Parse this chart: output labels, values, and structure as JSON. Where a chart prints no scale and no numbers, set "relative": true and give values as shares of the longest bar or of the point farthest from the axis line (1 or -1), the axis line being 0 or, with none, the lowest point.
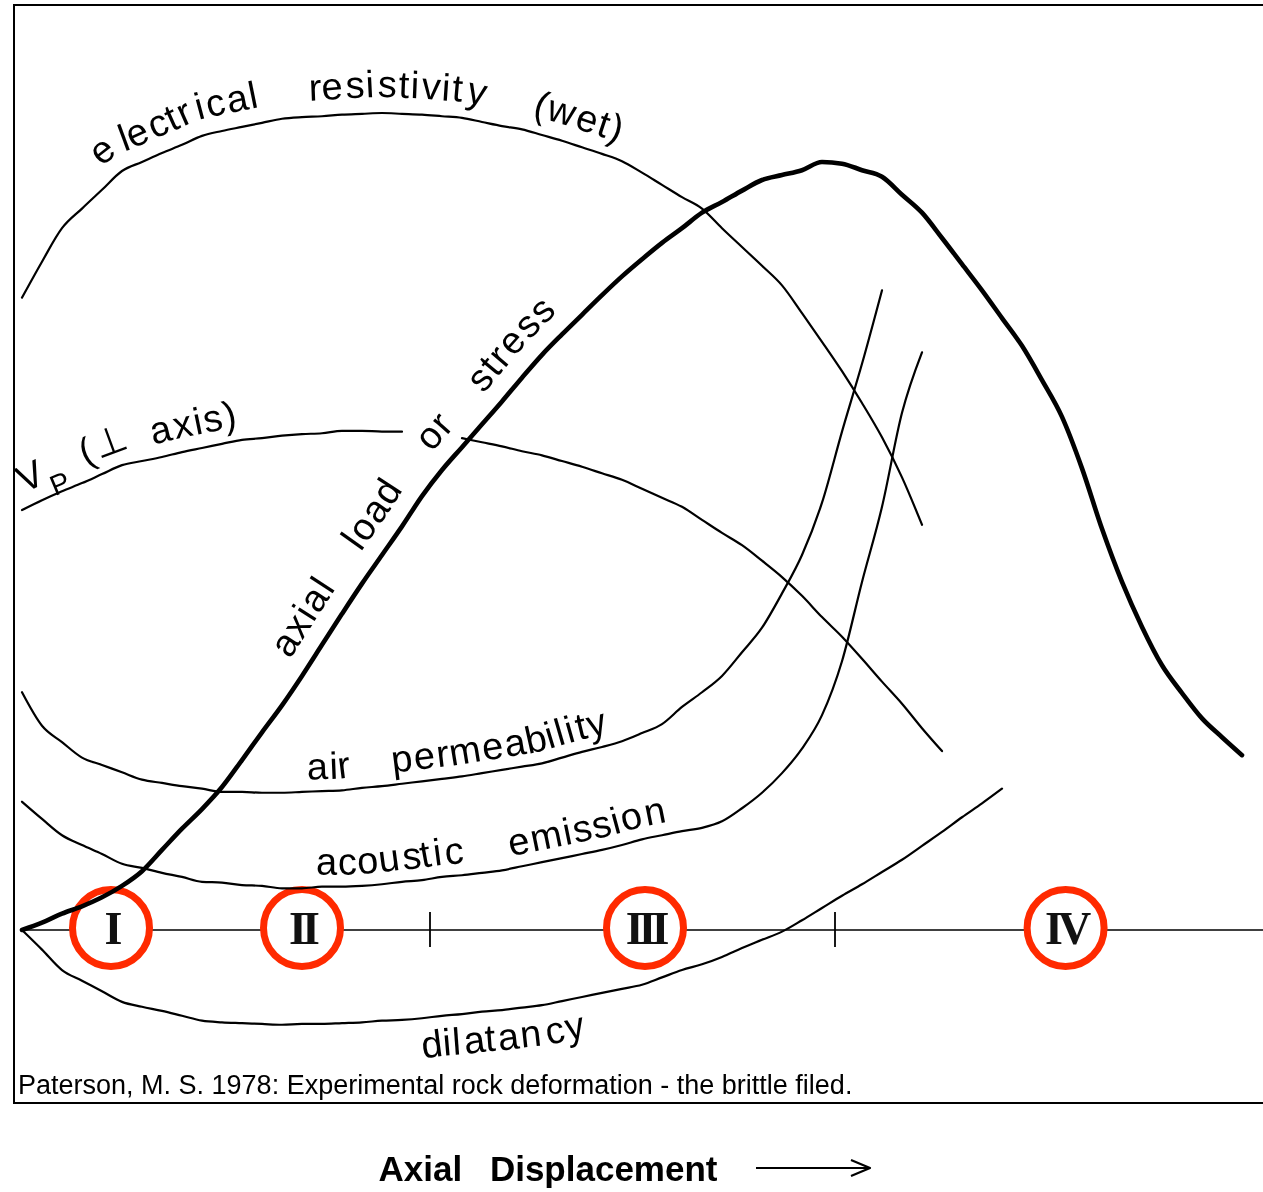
{
  "chart_data": {
    "type": "line",
    "relative": true,
    "xlabel": "Axial Displacement",
    "annotations": [
      "I",
      "II",
      "III",
      "IV",
      "Paterson, M. S. 1978: Experimental rock deformation - the brittle filed."
    ],
    "categories": [
      null,
      null,
      null,
      null,
      null,
      null,
      null,
      null,
      null,
      null,
      null,
      null,
      null,
      null,
      null,
      null,
      null,
      null,
      null,
      null,
      null,
      null,
      null,
      null,
      null,
      null,
      null,
      null,
      null,
      null,
      null,
      null,
      null,
      null,
      null,
      null,
      null,
      null,
      null,
      null,
      null,
      null,
      null,
      null,
      null,
      null,
      null,
      null,
      null,
      null,
      null,
      null,
      null,
      null,
      null,
      null,
      null,
      null,
      null,
      null,
      null,
      null
    ],
    "series": [
      {
        "name": "electrical resistivity (wet)",
        "color": "#000000",
        "values": [
          0.774,
          0.818,
          0.859,
          0.883,
          0.906,
          0.929,
          0.94,
          0.951,
          0.961,
          0.972,
          0.978,
          0.983,
          0.988,
          0.993,
          0.995,
          0.996,
          0.998,
          0.999,
          1,
          0.999,
          0.998,
          0.996,
          0.994,
          0.989,
          0.984,
          0.98,
          0.973,
          0.966,
          0.958,
          0.95,
          0.941,
          0.927,
          0.912,
          0.897,
          0.883,
          0.859,
          0.836,
          0.813,
          0.789,
          0.755,
          0.72,
          0.684,
          0.645,
          0.603,
          0.554,
          0.496,
          null,
          null,
          null,
          null,
          null,
          null,
          null,
          null,
          null,
          null,
          null,
          null,
          null,
          null,
          null,
          null
        ]
      },
      {
        "name": "V$_{P}$ (⊥ axis)",
        "color": "#000000",
        "values": [
          0.514,
          0.526,
          0.537,
          0.547,
          0.558,
          0.569,
          0.574,
          0.579,
          0.585,
          0.59,
          0.595,
          0.6,
          0.602,
          0.605,
          0.607,
          0.608,
          0.611,
          0.611,
          0.61,
          0.61,
          null,
          null,
          0.602,
          0.597,
          0.592,
          0.586,
          0.581,
          0.574,
          0.567,
          0.559,
          0.551,
          0.54,
          0.529,
          0.518,
          0.502,
          0.486,
          0.471,
          0.452,
          0.432,
          0.409,
          0.383,
          0.359,
          0.332,
          0.304,
          0.277,
          0.247,
          0.219,
          null,
          null,
          null,
          null,
          null,
          null,
          null,
          null,
          null,
          null,
          null,
          null,
          null,
          null,
          null
        ]
      },
      {
        "name": "axial load or stress",
        "color": "#000000",
        "values": [
          0,
          0.009,
          0.02,
          0.029,
          0.04,
          0.054,
          0.072,
          0.098,
          0.124,
          0.148,
          0.175,
          0.208,
          0.242,
          0.275,
          0.311,
          0.349,
          0.387,
          0.424,
          0.459,
          0.494,
          0.531,
          0.563,
          0.591,
          0.619,
          0.647,
          0.676,
          0.704,
          0.729,
          0.753,
          0.777,
          0.8,
          0.821,
          0.841,
          0.859,
          0.878,
          0.891,
          0.905,
          0.918,
          0.924,
          0.93,
          0.94,
          0.938,
          0.93,
          0.922,
          0.9,
          0.878,
          0.847,
          0.815,
          0.783,
          0.749,
          0.715,
          0.673,
          0.628,
          0.565,
          0.491,
          0.426,
          0.371,
          0.324,
          0.29,
          0.259,
          0.236,
          0.214
        ]
      },
      {
        "name": "air permeability",
        "color": "#000000",
        "values": [
          0.291,
          0.25,
          0.23,
          0.211,
          0.202,
          0.193,
          0.184,
          0.18,
          0.176,
          0.173,
          0.169,
          0.169,
          0.168,
          0.168,
          0.169,
          0.17,
          0.171,
          0.174,
          0.176,
          0.179,
          0.182,
          0.185,
          0.188,
          0.192,
          0.196,
          0.2,
          0.204,
          0.211,
          0.218,
          0.224,
          0.231,
          0.241,
          0.252,
          0.273,
          0.291,
          0.311,
          0.34,
          0.37,
          0.412,
          0.459,
          0.523,
          0.61,
          0.693,
          0.783,
          null,
          null,
          null,
          null,
          null,
          null,
          null,
          null,
          null,
          null,
          null,
          null,
          null,
          null,
          null,
          null,
          null,
          null
        ]
      },
      {
        "name": "acoustic emission",
        "color": "#000000",
        "values": [
          0.157,
          0.136,
          0.116,
          0.104,
          0.093,
          0.081,
          0.076,
          0.07,
          0.065,
          0.059,
          0.058,
          0.055,
          0.054,
          0.051,
          0.051,
          0.053,
          0.053,
          0.054,
          0.056,
          0.059,
          0.061,
          0.065,
          0.067,
          0.07,
          0.073,
          0.078,
          0.083,
          0.088,
          0.093,
          0.098,
          0.104,
          0.111,
          0.116,
          0.121,
          0.125,
          0.133,
          0.149,
          0.168,
          0.192,
          0.222,
          0.263,
          0.329,
          0.426,
          0.518,
          0.633,
          0.707,
          null,
          null,
          null,
          null,
          null,
          null,
          null,
          null,
          null,
          null,
          null,
          null,
          null,
          null,
          null,
          null
        ]
      },
      {
        "name": "dilatancy",
        "color": "#000000",
        "values": [
          0,
          -0.024,
          -0.049,
          -0.062,
          -0.075,
          -0.088,
          -0.094,
          -0.099,
          -0.105,
          -0.111,
          -0.113,
          -0.114,
          -0.115,
          -0.116,
          -0.115,
          -0.115,
          -0.114,
          -0.113,
          -0.111,
          -0.11,
          -0.108,
          -0.105,
          -0.103,
          -0.1,
          -0.098,
          -0.095,
          -0.092,
          -0.087,
          -0.082,
          -0.077,
          -0.072,
          -0.067,
          -0.058,
          -0.049,
          -0.042,
          -0.033,
          -0.022,
          -0.012,
          -0.002,
          0.012,
          0.027,
          0.042,
          0.056,
          0.071,
          0.086,
          0.103,
          0.12,
          0.138,
          0.155,
          0.173,
          null,
          null,
          null,
          null,
          null,
          null,
          null,
          null,
          null,
          null,
          null,
          null
        ]
      }
    ]
  }
}
